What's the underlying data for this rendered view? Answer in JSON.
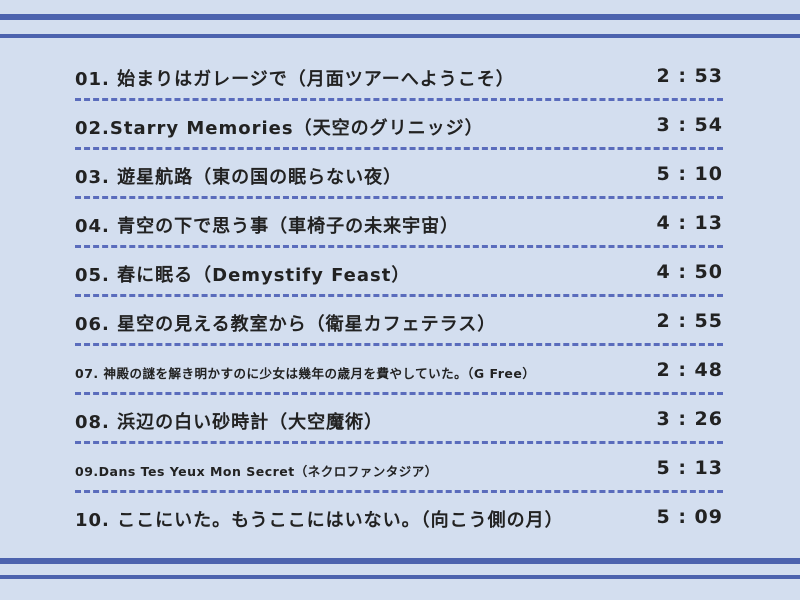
{
  "tracks": [
    {
      "title": "01. 始まりはガレージで（月面ツアーへようこそ）",
      "time": "2 : 53"
    },
    {
      "title": "02.Starry Memories（天空のグリニッジ）",
      "time": "3 : 54"
    },
    {
      "title": "03. 遊星航路（東の国の眠らない夜）",
      "time": "5 : 10"
    },
    {
      "title": "04. 青空の下で思う事（車椅子の未来宇宙）",
      "time": "4 : 13"
    },
    {
      "title": "05. 春に眠る（Demystify Feast）",
      "time": "4 : 50"
    },
    {
      "title": "06. 星空の見える教室から（衛星カフェテラス）",
      "time": "2 : 55"
    },
    {
      "title": "07. 神殿の謎を解き明かすのに少女は幾年の歳月を費やしていた。（G Free）",
      "time": "2 : 48"
    },
    {
      "title": "08. 浜辺の白い砂時計（大空魔術）",
      "time": "3 : 26"
    },
    {
      "title": "09.Dans Tes Yeux Mon Secret（ネクロファンタジア）",
      "time": "5 : 13"
    },
    {
      "title": "10. ここにいた。もうここにはいない。（向こう側の月）",
      "time": "5 : 09"
    }
  ]
}
